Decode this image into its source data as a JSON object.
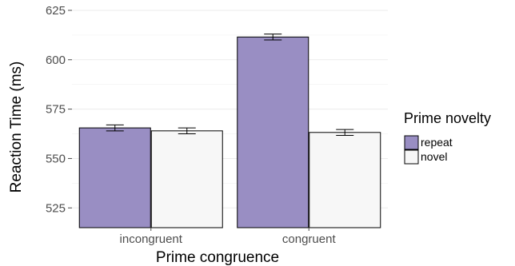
{
  "chart_data": {
    "type": "bar",
    "xlabel": "Prime congruence",
    "ylabel": "Reaction Time (ms)",
    "ylim": [
      515,
      627
    ],
    "yticks": [
      525,
      550,
      575,
      600,
      625
    ],
    "categories": [
      "incongruent",
      "congruent"
    ],
    "series": [
      {
        "name": "repeat",
        "values": [
          565.5,
          611.5
        ],
        "errors": [
          1.5,
          1.5
        ],
        "color": "#998ec3"
      },
      {
        "name": "novel",
        "values": [
          564.0,
          563.2
        ],
        "errors": [
          1.5,
          1.5
        ],
        "color": "#f7f7f7"
      }
    ],
    "legend": {
      "title": "Prime novelty",
      "placement": "right"
    },
    "grid": true
  }
}
